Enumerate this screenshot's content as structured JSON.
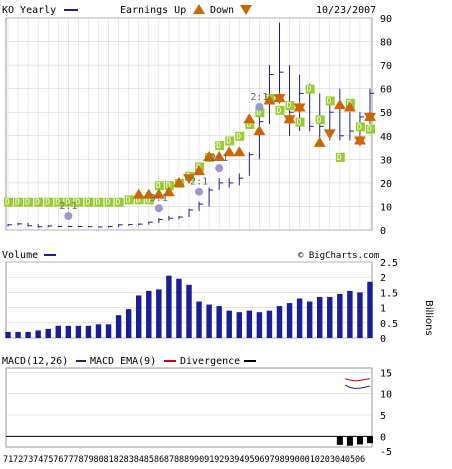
{
  "header": {
    "ticker_label": "KO Yearly",
    "earnings_label": "Earnings Up",
    "down_label": "Down",
    "date": "10/23/2007"
  },
  "colors": {
    "price": "#1a1f8c",
    "dividend": "#99cc33",
    "earnings_up": "#cc6600",
    "volume": "#1a1f99",
    "macd_ema": "#1a1f99",
    "divergence_line": "#cc0000",
    "divergence_bar": "#000000",
    "grid": "#cccccc",
    "split": "#9999cc"
  },
  "chart_data": [
    {
      "type": "line",
      "name": "price",
      "years": [
        1971,
        1972,
        1973,
        1974,
        1975,
        1976,
        1977,
        1978,
        1979,
        1980,
        1981,
        1982,
        1983,
        1984,
        1985,
        1986,
        1987,
        1988,
        1989,
        1990,
        1991,
        1992,
        1993,
        1994,
        1995,
        1996,
        1997,
        1998,
        1999,
        2000,
        2001,
        2002,
        2003,
        2004,
        2005,
        2006,
        2007
      ],
      "high": [
        2.5,
        3.0,
        3.0,
        2.5,
        2.0,
        1.8,
        1.7,
        1.8,
        1.7,
        1.5,
        1.7,
        2.5,
        2.5,
        2.8,
        3.5,
        5,
        6,
        6,
        9,
        12,
        18,
        22,
        22,
        24,
        33,
        48,
        70,
        88,
        70,
        66,
        62,
        58,
        53,
        60,
        50,
        50,
        60
      ],
      "low": [
        1.5,
        2.0,
        1.5,
        1.0,
        1.2,
        1.2,
        1.3,
        1.3,
        1.2,
        1.0,
        1.1,
        1.3,
        1.8,
        2.0,
        2.3,
        3.0,
        4.0,
        4.5,
        5.5,
        8,
        10,
        17,
        18,
        19,
        23,
        30,
        45,
        55,
        40,
        42,
        42,
        38,
        38,
        38,
        38,
        40,
        45
      ],
      "close": [
        2.2,
        2.6,
        1.8,
        1.4,
        1.7,
        1.5,
        1.5,
        1.5,
        1.4,
        1.3,
        1.5,
        2.2,
        2.3,
        2.5,
        3.3,
        4.5,
        5.0,
        5.5,
        8.5,
        11,
        17,
        20,
        20,
        22,
        32,
        46,
        66,
        67,
        50,
        58,
        44,
        44,
        50,
        40,
        42,
        48,
        58
      ],
      "ylim": [
        0,
        90
      ],
      "yticks": [
        0,
        10,
        20,
        30,
        40,
        50,
        60,
        70,
        80,
        90
      ],
      "splits": [
        {
          "year": 1977,
          "label": "2:1"
        },
        {
          "year": 1986,
          "label": "3:1"
        },
        {
          "year": 1990,
          "label": "2:1"
        },
        {
          "year": 1992,
          "label": "2:1"
        },
        {
          "year": 1996,
          "label": "2:1"
        }
      ],
      "dividend_marks": [
        {
          "year": 1971,
          "value": 12
        },
        {
          "year": 1972,
          "value": 12
        },
        {
          "year": 1973,
          "value": 12
        },
        {
          "year": 1974,
          "value": 12
        },
        {
          "year": 1975,
          "value": 12
        },
        {
          "year": 1976,
          "value": 12
        },
        {
          "year": 1977,
          "value": 12
        },
        {
          "year": 1978,
          "value": 12
        },
        {
          "year": 1979,
          "value": 12
        },
        {
          "year": 1980,
          "value": 12
        },
        {
          "year": 1981,
          "value": 12
        },
        {
          "year": 1982,
          "value": 12
        },
        {
          "year": 1983,
          "value": 13
        },
        {
          "year": 1984,
          "value": 13
        },
        {
          "year": 1985,
          "value": 13
        },
        {
          "year": 1986,
          "value": 19
        },
        {
          "year": 1987,
          "value": 19
        },
        {
          "year": 1988,
          "value": 20
        },
        {
          "year": 1989,
          "value": 23
        },
        {
          "year": 1990,
          "value": 27
        },
        {
          "year": 1991,
          "value": 31
        },
        {
          "year": 1992,
          "value": 36
        },
        {
          "year": 1993,
          "value": 38
        },
        {
          "year": 1994,
          "value": 40
        },
        {
          "year": 1995,
          "value": 45
        },
        {
          "year": 1996,
          "value": 50
        },
        {
          "year": 1997,
          "value": 56
        },
        {
          "year": 1998,
          "value": 51
        },
        {
          "year": 1999,
          "value": 53
        },
        {
          "year": 2000,
          "value": 46
        },
        {
          "year": 2001,
          "value": 60
        },
        {
          "year": 2002,
          "value": 47
        },
        {
          "year": 2003,
          "value": 55
        },
        {
          "year": 2004,
          "value": 31
        },
        {
          "year": 2005,
          "value": 54
        },
        {
          "year": 2006,
          "value": 44
        },
        {
          "year": 2007,
          "value": 43
        }
      ],
      "earnings_up_marks": [
        {
          "year": 1984,
          "value": 15
        },
        {
          "year": 1985,
          "value": 15
        },
        {
          "year": 1986,
          "value": 15
        },
        {
          "year": 1987,
          "value": 16
        },
        {
          "year": 1988,
          "value": 20
        },
        {
          "year": 1990,
          "value": 25
        },
        {
          "year": 1991,
          "value": 31
        },
        {
          "year": 1992,
          "value": 31
        },
        {
          "year": 1993,
          "value": 33
        },
        {
          "year": 1994,
          "value": 33
        },
        {
          "year": 1995,
          "value": 47
        },
        {
          "year": 1996,
          "value": 42
        },
        {
          "year": 1997,
          "value": 55
        },
        {
          "year": 1998,
          "value": 56
        },
        {
          "year": 1999,
          "value": 47
        },
        {
          "year": 2000,
          "value": 52
        },
        {
          "year": 2002,
          "value": 37
        },
        {
          "year": 2004,
          "value": 53
        },
        {
          "year": 2005,
          "value": 52
        },
        {
          "year": 2006,
          "value": 38
        },
        {
          "year": 2007,
          "value": 48
        }
      ],
      "earnings_down_marks": [
        {
          "year": 1989,
          "value": 22
        },
        {
          "year": 1998,
          "value": 56
        },
        {
          "year": 1999,
          "value": 47
        },
        {
          "year": 2000,
          "value": 52
        },
        {
          "year": 2003,
          "value": 41
        },
        {
          "year": 2006,
          "value": 38
        },
        {
          "year": 2007,
          "value": 48
        }
      ]
    },
    {
      "type": "bar",
      "name": "volume",
      "title": "Volume",
      "ylabel": "Billions",
      "ylim": [
        0,
        2.5
      ],
      "yticks": [
        0,
        0.5,
        1,
        1.5,
        2,
        2.5
      ],
      "years": [
        1971,
        1972,
        1973,
        1974,
        1975,
        1976,
        1977,
        1978,
        1979,
        1980,
        1981,
        1982,
        1983,
        1984,
        1985,
        1986,
        1987,
        1988,
        1989,
        1990,
        1991,
        1992,
        1993,
        1994,
        1995,
        1996,
        1997,
        1998,
        1999,
        2000,
        2001,
        2002,
        2003,
        2004,
        2005,
        2006,
        2007
      ],
      "values": [
        0.2,
        0.2,
        0.2,
        0.25,
        0.3,
        0.4,
        0.4,
        0.4,
        0.4,
        0.45,
        0.45,
        0.75,
        0.95,
        1.4,
        1.55,
        1.6,
        2.05,
        1.95,
        1.75,
        1.2,
        1.1,
        1.05,
        0.9,
        0.85,
        0.9,
        0.85,
        0.9,
        1.05,
        1.15,
        1.3,
        1.2,
        1.35,
        1.35,
        1.45,
        1.55,
        1.5,
        1.85
      ]
    },
    {
      "type": "line",
      "name": "macd",
      "title": "MACD(12,26)",
      "legend": [
        "MACD EMA(9)",
        "Divergence"
      ],
      "ylim": [
        -2.5,
        16
      ],
      "yticks": [
        -5,
        0,
        5,
        10,
        15
      ],
      "macd_years": [
        2004.5,
        2005,
        2005.5,
        2006,
        2006.5,
        2007
      ],
      "macd_values": [
        13.5,
        13.2,
        13.0,
        13.1,
        13.3,
        13.5
      ],
      "ema_values": [
        12.0,
        11.5,
        11.2,
        11.3,
        11.5,
        11.8
      ],
      "divergence_years": [
        2004,
        2005,
        2006,
        2007
      ],
      "divergence_values": [
        -2.0,
        -2.2,
        -1.9,
        -1.6
      ]
    }
  ],
  "x_tick_labels": [
    "71",
    "72",
    "73",
    "74",
    "75",
    "76",
    "77",
    "78",
    "79",
    "80",
    "81",
    "82",
    "83",
    "84",
    "85",
    "86",
    "87",
    "88",
    "89",
    "90",
    "91",
    "92",
    "93",
    "94",
    "95",
    "96",
    "97",
    "98",
    "99",
    "00",
    "01",
    "02",
    "03",
    "04",
    "05",
    "06"
  ],
  "watermark": "© BigCharts.com"
}
